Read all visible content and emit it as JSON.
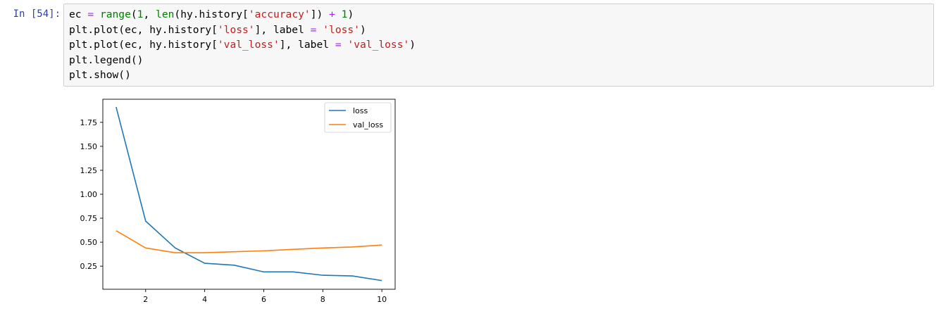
{
  "cell": {
    "prompt": "In [54]:",
    "code": {
      "line1": {
        "v": "ec",
        "eq": " = ",
        "fn1": "range",
        "p1": "(",
        "n1": "1",
        "p2": ", ",
        "fn2": "len",
        "p3": "(hy.history[",
        "s1": "'accuracy'",
        "p4": "]) ",
        "plus": "+",
        "sp": " ",
        "n2": "1",
        "p5": ")"
      },
      "line2": {
        "a": "plt.plot(ec, hy.history[",
        "s1": "'loss'",
        "b": "], label ",
        "eq": "=",
        "sp": " ",
        "s2": "'loss'",
        "c": ")"
      },
      "line3": {
        "a": "plt.plot(ec, hy.history[",
        "s1": "'val_loss'",
        "b": "], label ",
        "eq": "=",
        "sp": " ",
        "s2": "'val_loss'",
        "c": ")"
      },
      "line4": "plt.legend()",
      "line5": "plt.show()"
    }
  },
  "chart_data": {
    "type": "line",
    "x": [
      1,
      2,
      3,
      4,
      5,
      6,
      7,
      8,
      9,
      10
    ],
    "series": [
      {
        "name": "loss",
        "color": "#1f77b4",
        "values": [
          1.91,
          0.72,
          0.44,
          0.28,
          0.26,
          0.19,
          0.19,
          0.155,
          0.148,
          0.1
        ]
      },
      {
        "name": "val_loss",
        "color": "#ff7f0e",
        "values": [
          0.62,
          0.44,
          0.39,
          0.39,
          0.4,
          0.41,
          0.425,
          0.44,
          0.45,
          0.47
        ]
      }
    ],
    "xticks": [
      "2",
      "4",
      "6",
      "8",
      "10"
    ],
    "yticks": [
      "0.25",
      "0.50",
      "0.75",
      "1.00",
      "1.25",
      "1.50",
      "1.75"
    ],
    "xlim": [
      0.55,
      10.45
    ],
    "ylim": [
      0.009,
      1.991
    ],
    "legend_position": "upper right",
    "grid": false
  }
}
